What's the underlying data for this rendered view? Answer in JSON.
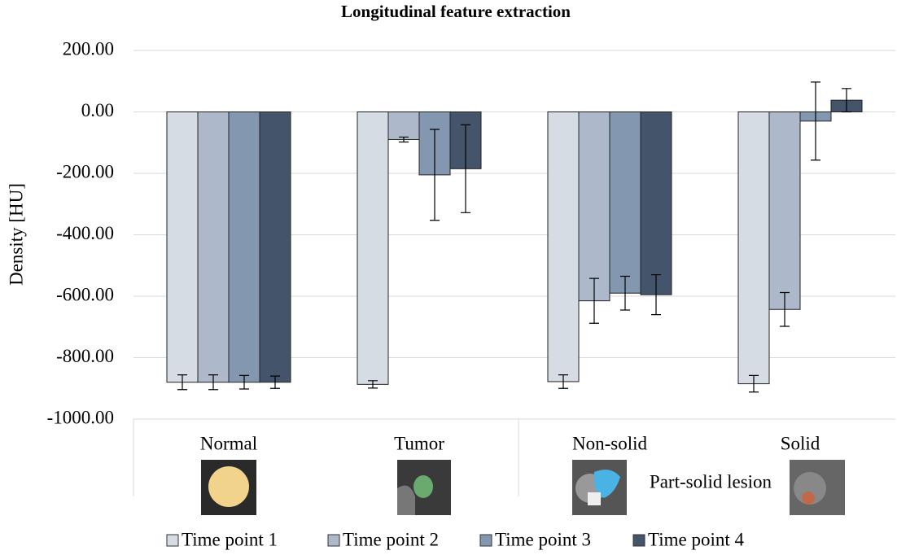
{
  "chart_data": {
    "type": "bar",
    "title": "Longitudinal feature extraction",
    "y_label": "Density [HU]",
    "annotation": "Part-solid lesion",
    "categories": [
      "Normal",
      "Tumor",
      "Non-solid",
      "Solid"
    ],
    "series": [
      {
        "name": "Time point 1",
        "color": "#d6dce4",
        "values": [
          -880,
          -887,
          -878,
          -885
        ],
        "errors": [
          24,
          12,
          22,
          27
        ]
      },
      {
        "name": "Time point 2",
        "color": "#adb9ca",
        "values": [
          -880,
          -90,
          -615,
          -643
        ],
        "errors": [
          24,
          8,
          73,
          55
        ]
      },
      {
        "name": "Time point 3",
        "color": "#8497b0",
        "values": [
          -880,
          -205,
          -590,
          -30
        ],
        "errors": [
          22,
          148,
          55,
          127
        ]
      },
      {
        "name": "Time point 4",
        "color": "#44546a",
        "values": [
          -880,
          -185,
          -595,
          38
        ],
        "errors": [
          20,
          143,
          65,
          38
        ]
      }
    ],
    "ylim": [
      -1000,
      200
    ],
    "yticks": [
      {
        "value": -1000,
        "label": "-1000.00"
      },
      {
        "value": -800,
        "label": "-800.00"
      },
      {
        "value": -600,
        "label": "-600.00"
      },
      {
        "value": -400,
        "label": "-400.00"
      },
      {
        "value": -200,
        "label": "-200.00"
      },
      {
        "value": 0,
        "label": "0.00"
      },
      {
        "value": 200,
        "label": "200.00"
      }
    ],
    "grid": true
  }
}
